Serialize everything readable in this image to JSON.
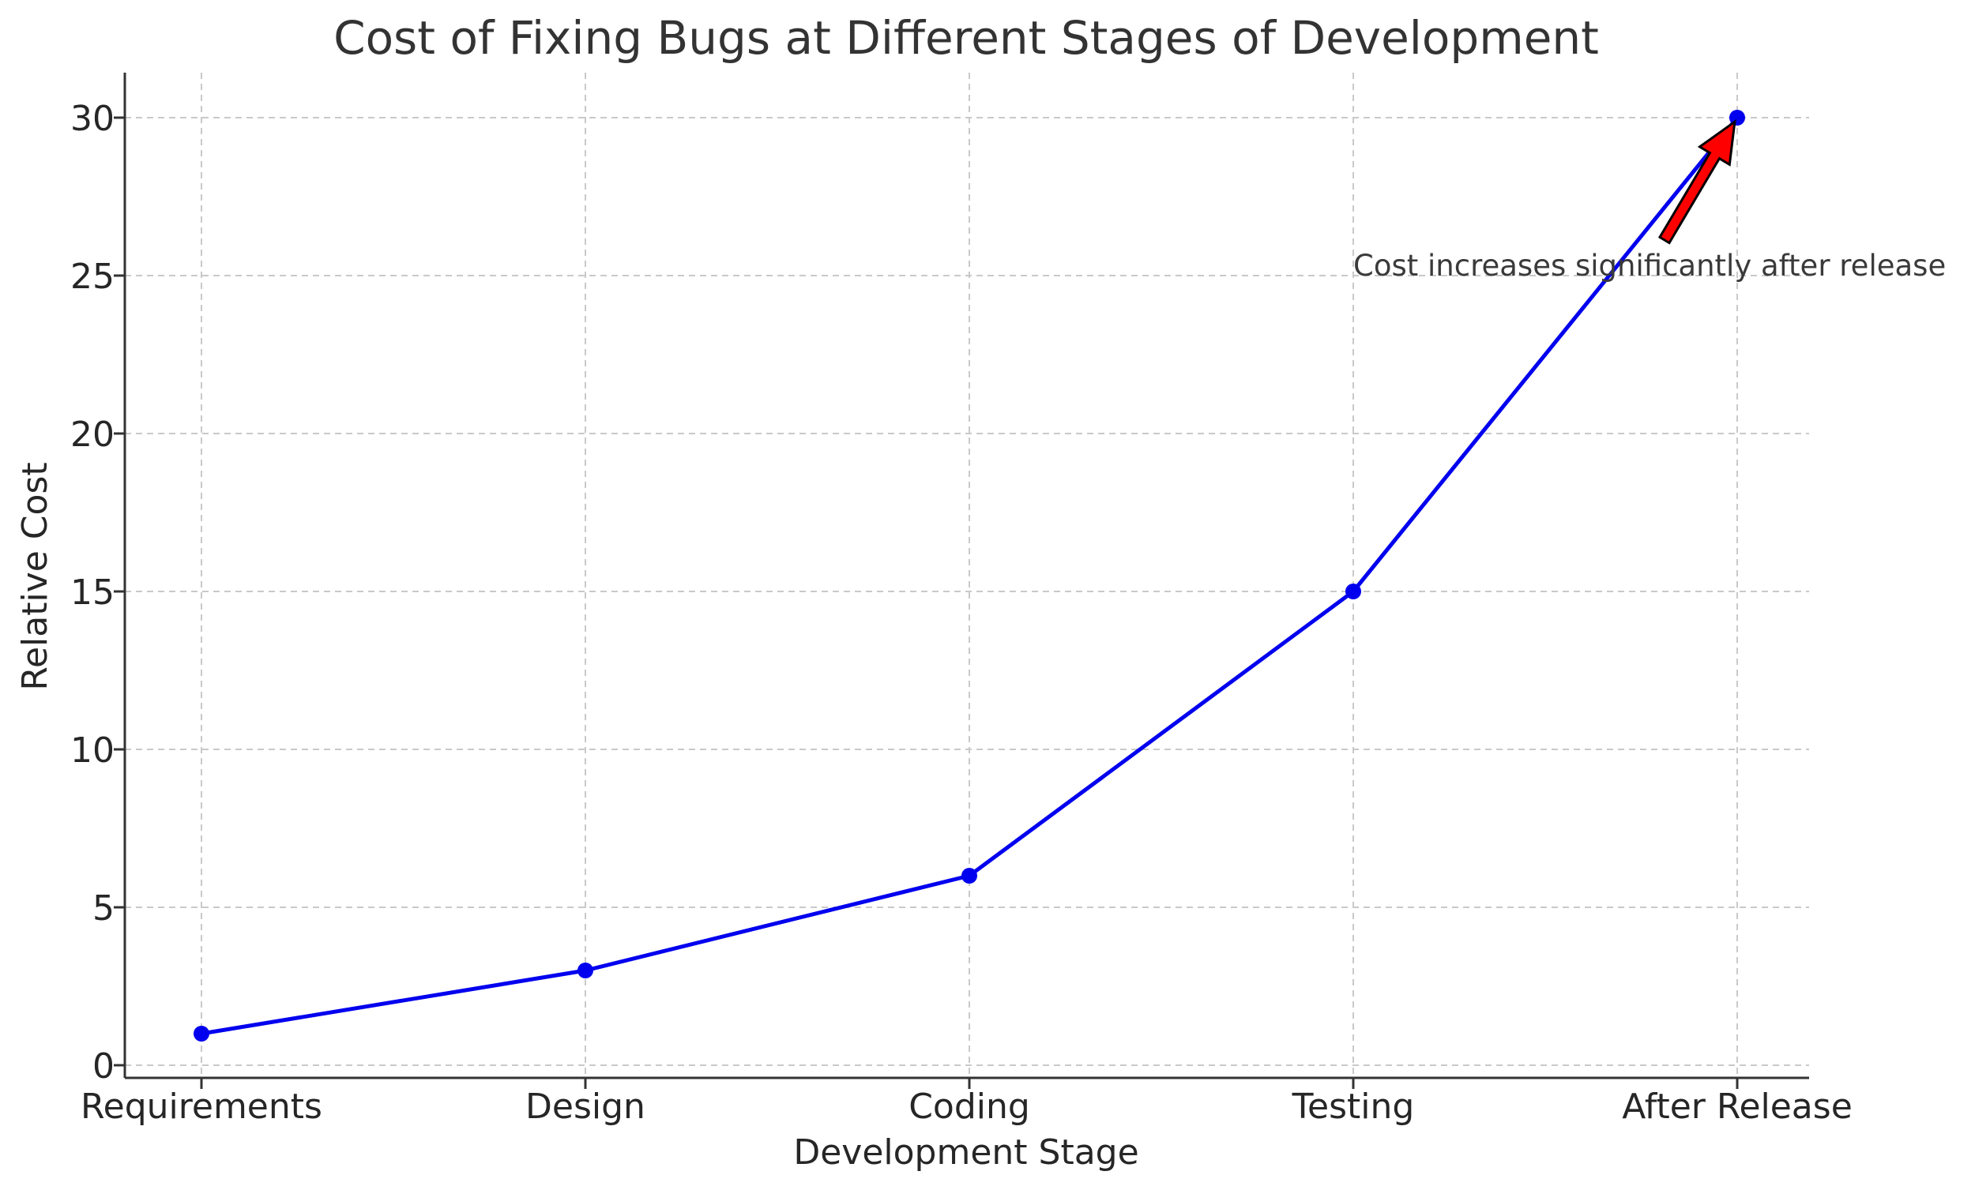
{
  "chart_data": {
    "type": "line",
    "title": "Cost of Fixing Bugs at Different Stages of Development",
    "xlabel": "Development Stage",
    "ylabel": "Relative Cost",
    "categories": [
      "Requirements",
      "Design",
      "Coding",
      "Testing",
      "After Release"
    ],
    "values": [
      1,
      3,
      6,
      15,
      30
    ],
    "ylim": [
      -0.4,
      31.5
    ],
    "yticks": [
      0,
      5,
      10,
      15,
      20,
      25,
      30
    ],
    "grid": true,
    "line_color": "#0000ee",
    "marker_color": "#0000ee",
    "annotation": {
      "text": "Cost increases significantly after release",
      "target_category": "After Release",
      "target_value": 30,
      "arrow_color": "#ff0000",
      "arrow_edge_color": "#000000"
    }
  }
}
